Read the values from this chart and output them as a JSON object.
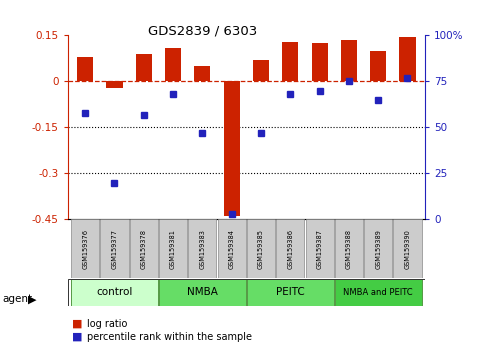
{
  "title": "GDS2839 / 6303",
  "samples": [
    "GSM159376",
    "GSM159377",
    "GSM159378",
    "GSM159381",
    "GSM159383",
    "GSM159384",
    "GSM159385",
    "GSM159386",
    "GSM159387",
    "GSM159388",
    "GSM159389",
    "GSM159390"
  ],
  "log_ratio": [
    0.08,
    -0.02,
    0.09,
    0.11,
    0.05,
    -0.44,
    0.07,
    0.13,
    0.125,
    0.135,
    0.1,
    0.145
  ],
  "percentile_rank": [
    58,
    20,
    57,
    68,
    47,
    3,
    47,
    68,
    70,
    75,
    65,
    77
  ],
  "groups_info": [
    {
      "start": 0,
      "end": 2,
      "label": "control",
      "color": "#ccffcc"
    },
    {
      "start": 3,
      "end": 5,
      "label": "NMBA",
      "color": "#66dd66"
    },
    {
      "start": 6,
      "end": 8,
      "label": "PEITC",
      "color": "#66dd66"
    },
    {
      "start": 9,
      "end": 11,
      "label": "NMBA and PEITC",
      "color": "#44cc44"
    }
  ],
  "ylim_left": [
    -0.45,
    0.15
  ],
  "ylim_right": [
    0,
    100
  ],
  "hlines_dotted": [
    -0.15,
    -0.3
  ],
  "hline_dashed": 0.0,
  "bar_color": "#cc2200",
  "dot_color": "#2222bb",
  "legend_logratio": "log ratio",
  "legend_percentile": "percentile rank within the sample",
  "bar_width": 0.55
}
